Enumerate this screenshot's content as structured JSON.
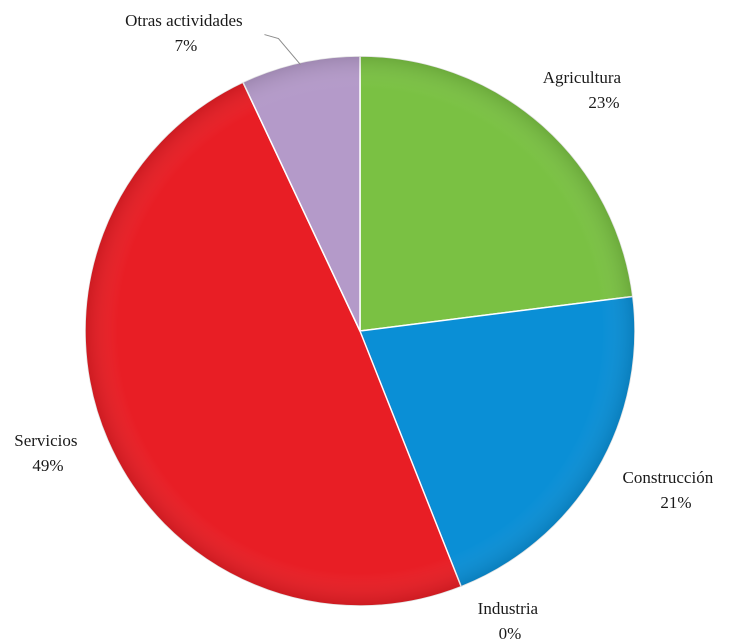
{
  "chart_data": {
    "type": "pie",
    "title": "",
    "slices": [
      {
        "label": "Agricultura",
        "value": 23,
        "value_label": "23%",
        "color": "#7ac143"
      },
      {
        "label": "Construcción",
        "value": 21,
        "value_label": "21%",
        "color": "#0a8fd6"
      },
      {
        "label": "Industria",
        "value": 0,
        "value_label": "0%",
        "color": "#3f5fa8"
      },
      {
        "label": "Servicios",
        "value": 49,
        "value_label": "49%",
        "color": "#e81e25"
      },
      {
        "label": "Otras actividades",
        "value": 7,
        "value_label": "7%",
        "color": "#b49ac9"
      }
    ],
    "start_angle": "12 o'clock",
    "direction": "clockwise",
    "legend": "none",
    "labels": "outside, category name with percentage below"
  }
}
